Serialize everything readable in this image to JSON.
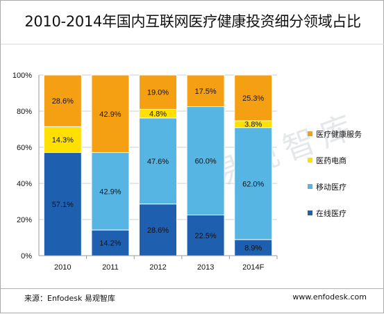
{
  "header": {
    "title": "2010-2014年国内互联网医疗健康投资细分领域占比"
  },
  "footer": {
    "source": "来源：Enfodesk 易观智库",
    "website": "www.enfodesk.com"
  },
  "watermark": "易观智库",
  "colors": {
    "online_medical": "#1f5fb0",
    "mobile_medical": "#56b5e3",
    "pharma_ecommerce": "#ffe000",
    "health_services": "#f5a013",
    "grid": "#cccccc",
    "axis": "#999999",
    "text": "#111111"
  },
  "chart_data": {
    "type": "bar",
    "stacked": true,
    "percent_stacked": true,
    "title": "2010-2014年国内互联网医疗健康投资细分领域占比",
    "categories": [
      "2010",
      "2011",
      "2012",
      "2013",
      "2014F"
    ],
    "ylim": [
      0,
      100
    ],
    "yticks": [
      "0%",
      "20%",
      "40%",
      "60%",
      "80%",
      "100%"
    ],
    "grid": true,
    "legend_position": "right",
    "series": [
      {
        "name": "在线医疗",
        "key": "online_medical",
        "values": [
          57.1,
          14.2,
          28.6,
          22.5,
          8.9
        ],
        "labels": [
          "57.1%",
          "14.2%",
          "28.6%",
          "22.5%",
          "8.9%"
        ]
      },
      {
        "name": "移动医疗",
        "key": "mobile_medical",
        "values": [
          0,
          42.9,
          47.6,
          60.0,
          62.0
        ],
        "labels": [
          "",
          "42.9%",
          "47.6%",
          "60.0%",
          "62.0%"
        ]
      },
      {
        "name": "医药电商",
        "key": "pharma_ecommerce",
        "values": [
          14.3,
          0,
          4.8,
          0,
          3.8
        ],
        "labels": [
          "14.3%",
          "",
          "4.8%",
          "",
          "3.8%"
        ]
      },
      {
        "name": "医疗健康服务",
        "key": "health_services",
        "values": [
          28.6,
          42.9,
          19.0,
          17.5,
          25.3
        ],
        "labels": [
          "28.6%",
          "42.9%",
          "19.0%",
          "17.5%",
          "25.3%"
        ]
      }
    ],
    "legend_order": [
      "医疗健康服务",
      "医药电商",
      "移动医疗",
      "在线医疗"
    ]
  }
}
